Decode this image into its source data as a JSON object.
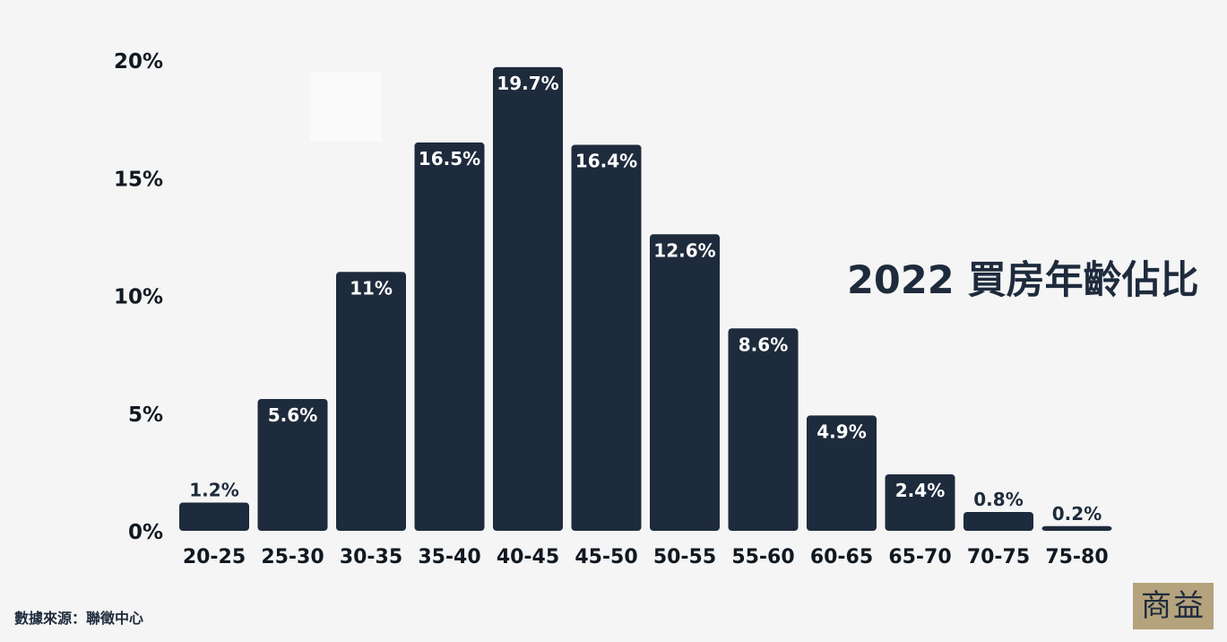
{
  "chart_data": {
    "type": "bar",
    "title": "2022 買房年齡佔比",
    "xlabel": "",
    "ylabel": "",
    "categories": [
      "20-25",
      "25-30",
      "30-35",
      "35-40",
      "40-45",
      "45-50",
      "50-55",
      "55-60",
      "60-65",
      "65-70",
      "70-75",
      "75-80"
    ],
    "values": [
      1.2,
      5.6,
      11,
      16.5,
      19.7,
      16.4,
      12.6,
      8.6,
      4.9,
      2.4,
      0.8,
      0.2
    ],
    "data_labels": [
      "1.2%",
      "5.6%",
      "11%",
      "16.5%",
      "19.7%",
      "16.4%",
      "12.6%",
      "8.6%",
      "4.9%",
      "2.4%",
      "0.8%",
      "0.2%"
    ],
    "ylim": [
      0,
      20
    ],
    "yticks": [
      0,
      5,
      10,
      15,
      20
    ],
    "ytick_labels": [
      "0%",
      "5%",
      "10%",
      "15%",
      "20%"
    ],
    "grid": false,
    "legend": "none",
    "bar_color": "#1e2b3c"
  },
  "source": "數據來源：聯徵中心",
  "logo_text": "商益"
}
